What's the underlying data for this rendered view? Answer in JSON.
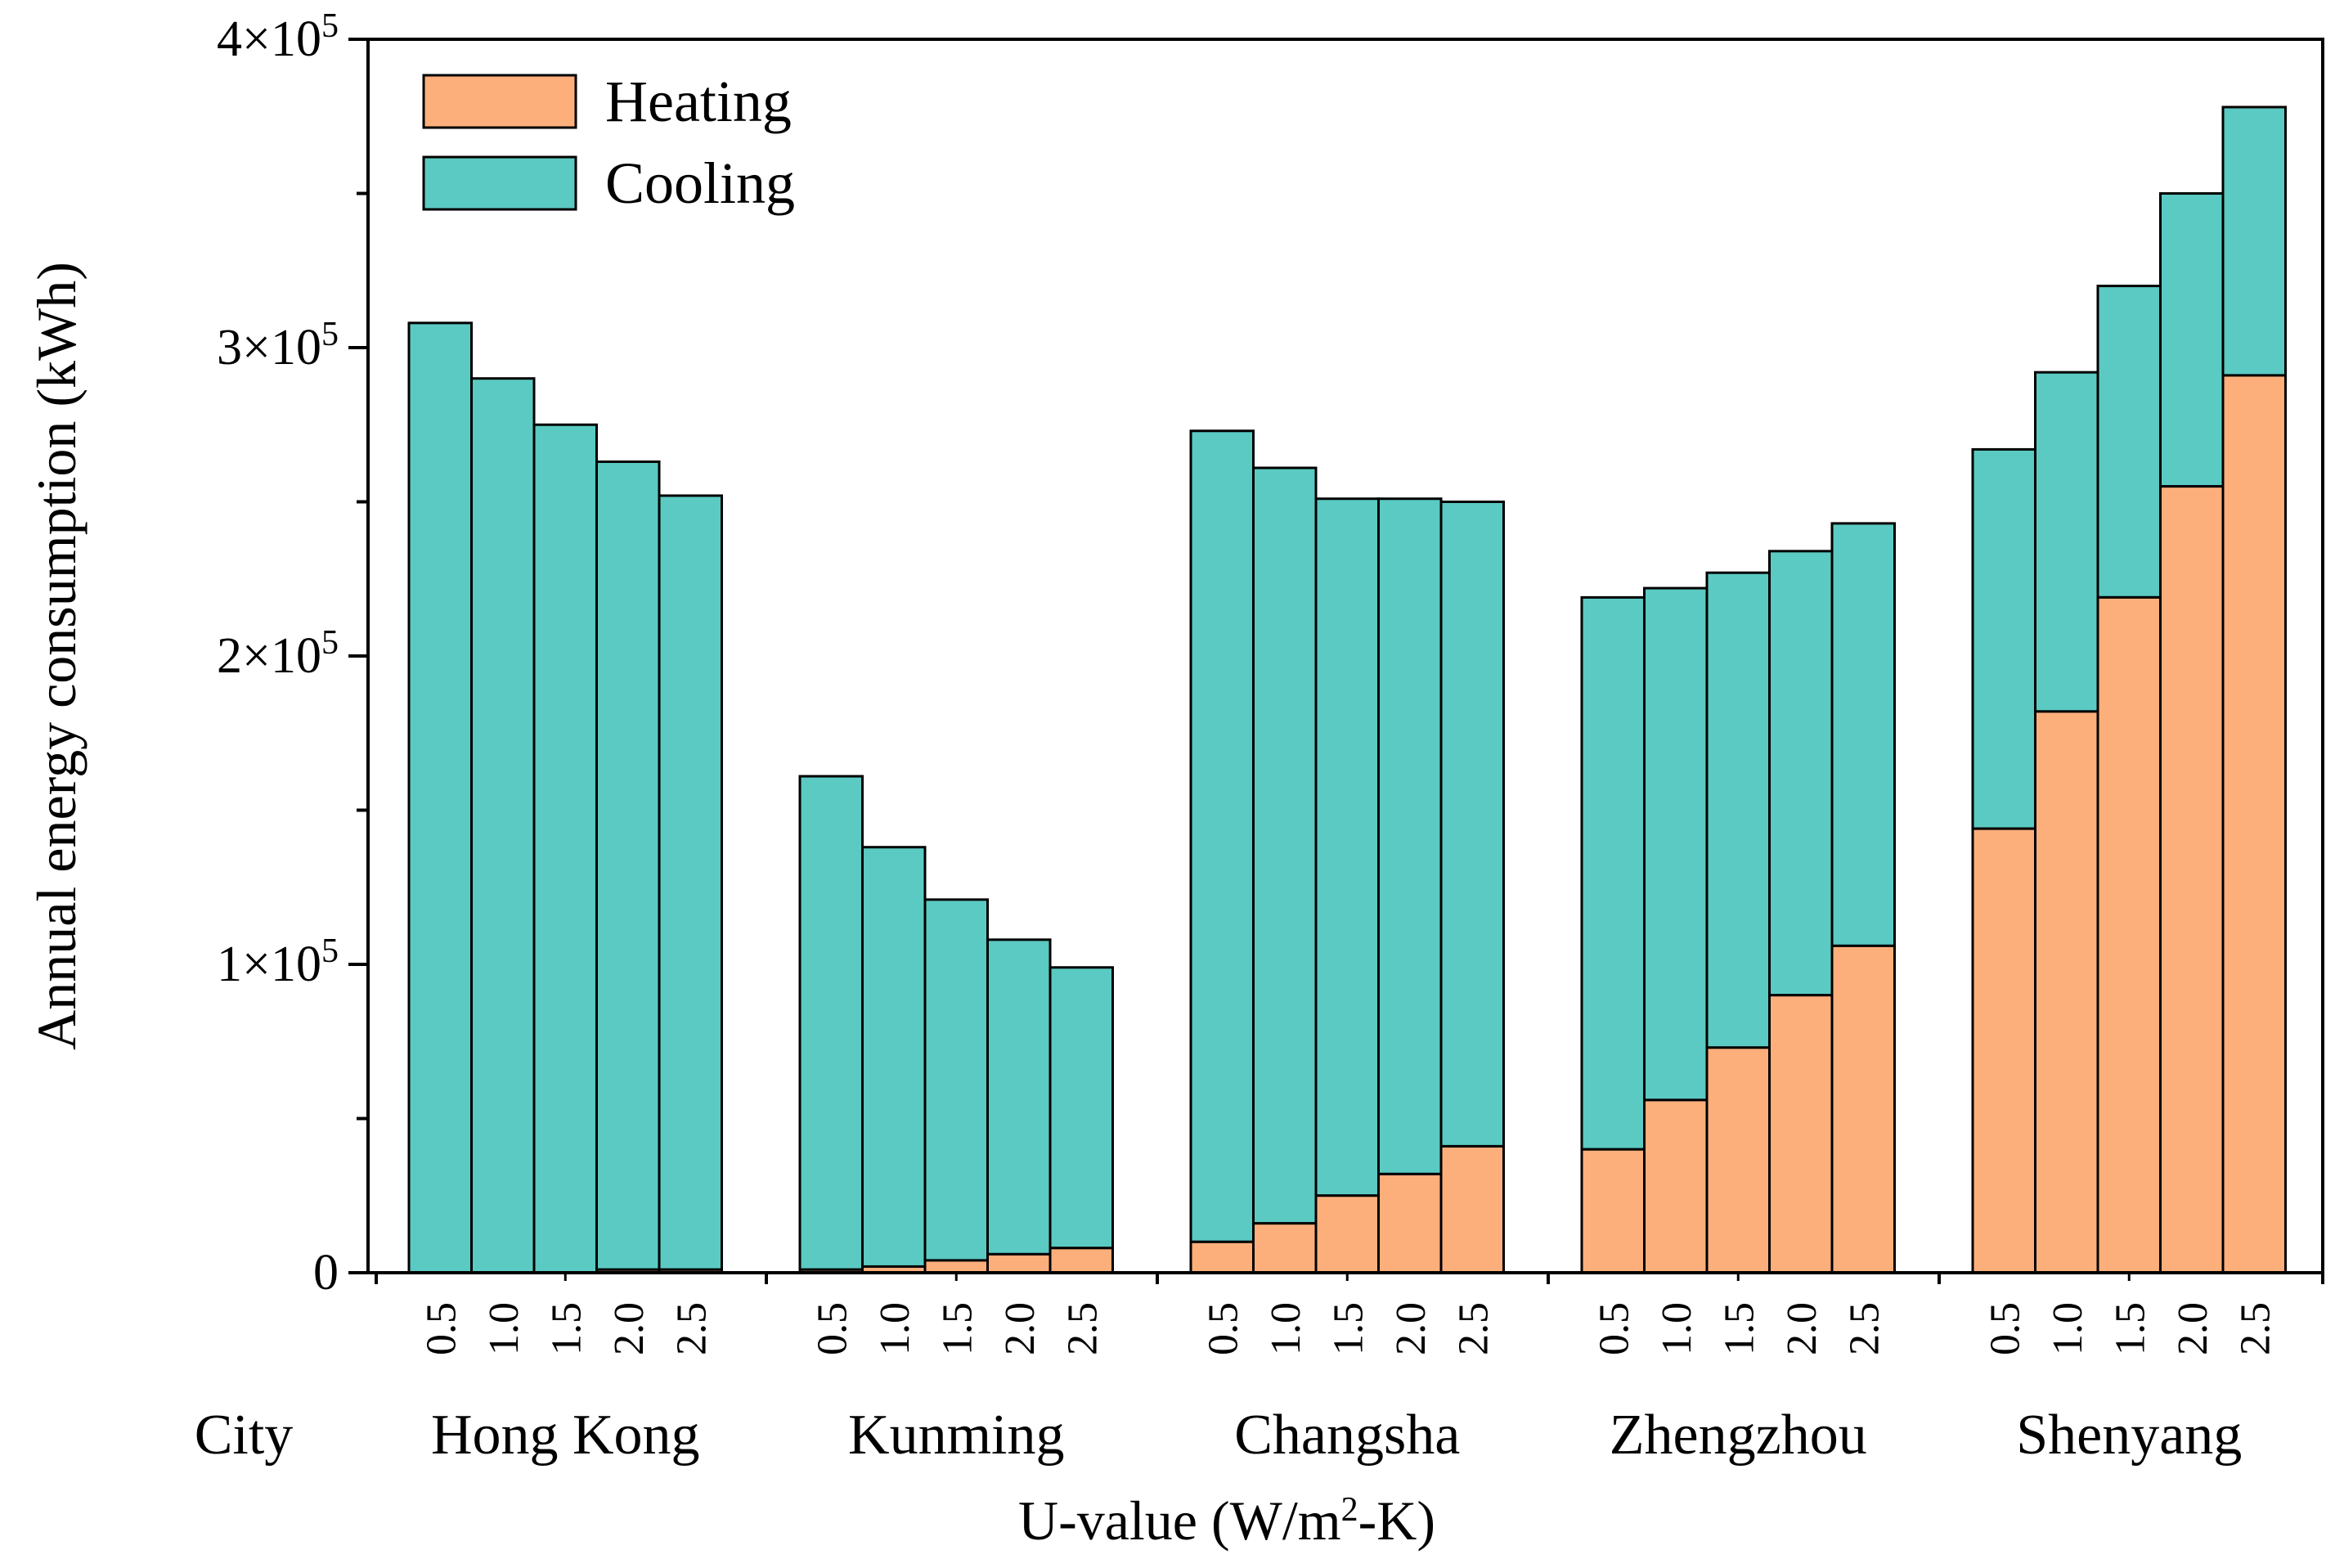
{
  "chart_data": {
    "type": "bar",
    "stacked": true,
    "ylabel": "Annual energy consumption (kWh)",
    "xlabel_main": "U-value (W/m",
    "xlabel_sup": "2",
    "xlabel_tail": "-K)",
    "city_axis_label": "City",
    "ylim": [
      0,
      400000
    ],
    "yticks": [
      {
        "value": 0,
        "mant": "0",
        "exp": ""
      },
      {
        "value": 100000,
        "mant": "1×10",
        "exp": "5"
      },
      {
        "value": 200000,
        "mant": "2×10",
        "exp": "5"
      },
      {
        "value": 300000,
        "mant": "3×10",
        "exp": "5"
      },
      {
        "value": 400000,
        "mant": "4×10",
        "exp": "5"
      }
    ],
    "u_values": [
      "0.5",
      "1.0",
      "1.5",
      "2.0",
      "2.5"
    ],
    "legend": [
      {
        "name": "Heating",
        "color": "#FDAF7B"
      },
      {
        "name": "Cooling",
        "color": "#5BCAC2"
      }
    ],
    "groups": [
      {
        "city": "Hong Kong",
        "heating": [
          0,
          0,
          0,
          1000,
          1000
        ],
        "total": [
          308000,
          290000,
          275000,
          263000,
          252000
        ]
      },
      {
        "city": "Kunming",
        "heating": [
          1000,
          2000,
          4000,
          6000,
          8000
        ],
        "total": [
          161000,
          138000,
          121000,
          108000,
          99000
        ]
      },
      {
        "city": "Changsha",
        "heating": [
          10000,
          16000,
          25000,
          32000,
          41000
        ],
        "total": [
          273000,
          261000,
          251000,
          251000,
          250000
        ]
      },
      {
        "city": "Zhengzhou",
        "heating": [
          40000,
          56000,
          73000,
          90000,
          106000
        ],
        "total": [
          219000,
          222000,
          227000,
          234000,
          243000
        ]
      },
      {
        "city": "Shenyang",
        "heating": [
          144000,
          182000,
          219000,
          255000,
          291000
        ],
        "total": [
          267000,
          292000,
          320000,
          350000,
          378000
        ]
      }
    ]
  }
}
